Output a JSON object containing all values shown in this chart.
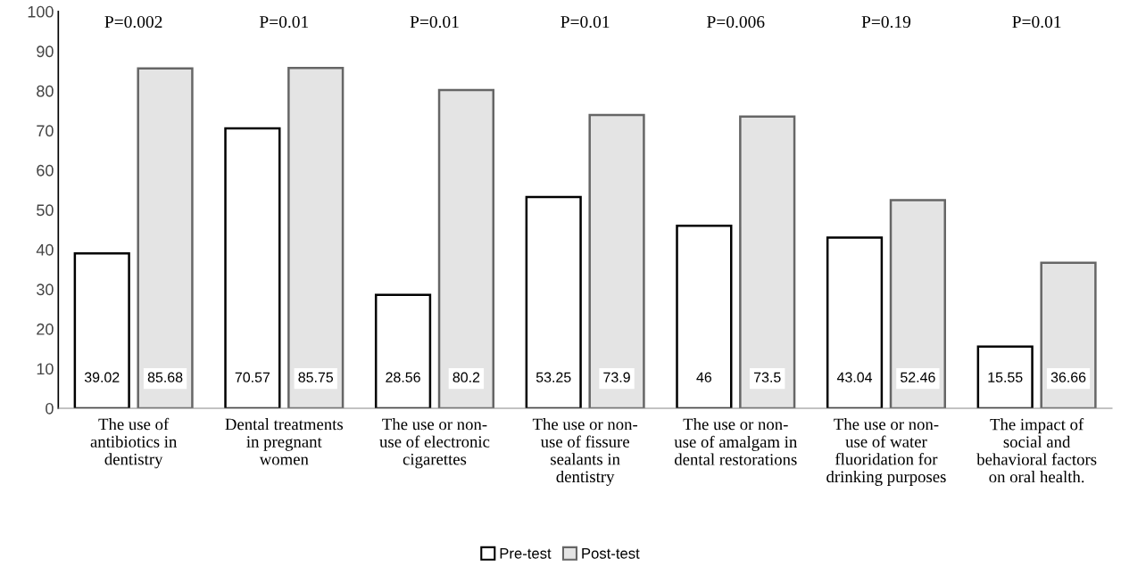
{
  "chart_data": {
    "type": "bar",
    "categories": [
      "The use of\nantibiotics in\ndentistry",
      "Dental treatments\nin pregnant\nwomen",
      "The use or non-\nuse of electronic\ncigarettes",
      "The use or non-\nuse of fissure\nsealants in\ndentistry",
      "The use or non-\nuse of amalgam in\ndental restorations",
      "The use or non-\nuse of water\nfluoridation for\ndrinking purposes",
      "The impact of\nsocial and\nbehavioral factors\non oral health."
    ],
    "series": [
      {
        "name": "Pre-test",
        "color": "#ffffff",
        "values": [
          39.02,
          70.57,
          28.56,
          53.25,
          46,
          43.04,
          15.55
        ]
      },
      {
        "name": "Post-test",
        "color": "#e4e4e4",
        "values": [
          85.68,
          85.75,
          80.2,
          73.9,
          73.5,
          52.46,
          36.66
        ]
      }
    ],
    "ylim": [
      0,
      100
    ],
    "yticks": [
      0,
      10,
      20,
      30,
      40,
      50,
      60,
      70,
      80,
      90,
      100
    ],
    "annotations": [
      "P=0.002",
      "P=0.01",
      "P=0.01",
      "P=0.01",
      "P=0.006",
      "P=0.19",
      "P=0.01"
    ],
    "data_labels": true,
    "legend": "bottom",
    "grid": false
  }
}
